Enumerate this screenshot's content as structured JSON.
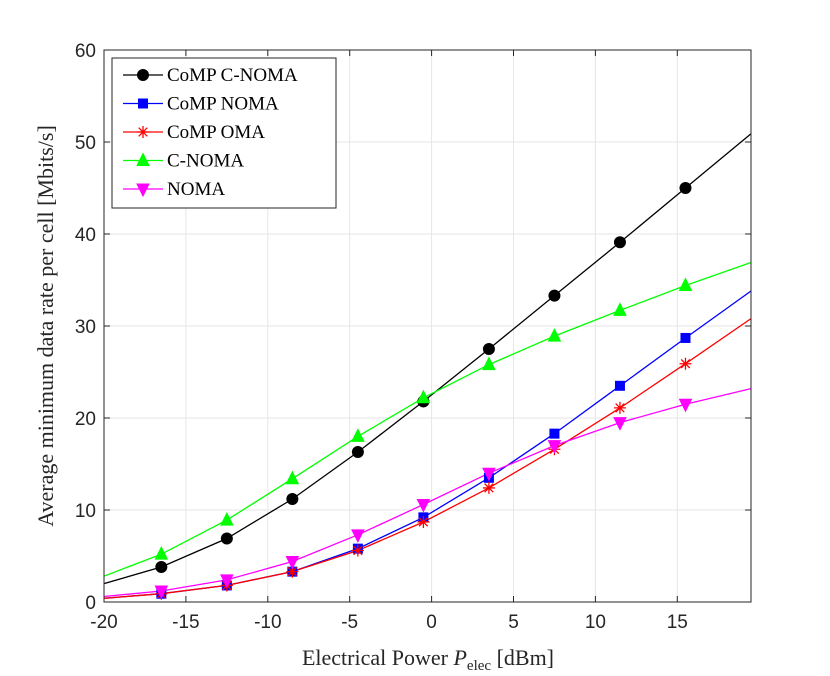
{
  "chart_data": {
    "type": "line",
    "xlabel_main": "Electrical Power ",
    "xlabel_var": "P",
    "xlabel_sub": "elec",
    "xlabel_unit": " [dBm]",
    "ylabel": "Average minimum data rate per cell [Mbits/s]",
    "xlim": [
      -20,
      19.5
    ],
    "ylim": [
      0,
      60
    ],
    "x_ticks": [
      -20,
      -15,
      -10,
      -5,
      0,
      5,
      10,
      15
    ],
    "x_tick_labels": [
      "-20",
      "-15",
      "-10",
      "-5",
      "0",
      "5",
      "10",
      "15"
    ],
    "y_ticks": [
      0,
      10,
      20,
      30,
      40,
      50,
      60
    ],
    "y_tick_labels": [
      "0",
      "10",
      "20",
      "30",
      "40",
      "50",
      "60"
    ],
    "grid": true,
    "legend_position": "top-left",
    "series": [
      {
        "name": "CoMP C-NOMA",
        "color": "#000000",
        "marker": "circle",
        "x": [
          -20,
          -16.5,
          -12.5,
          -8.5,
          -4.5,
          -0.5,
          3.5,
          7.5,
          11.5,
          15.5,
          19.5
        ],
        "y": [
          2.0,
          3.8,
          6.9,
          11.2,
          16.3,
          21.8,
          27.5,
          33.3,
          39.1,
          45.0,
          50.9
        ],
        "marker_x": [
          -16.5,
          -12.5,
          -8.5,
          -4.5,
          -0.5,
          3.5,
          7.5,
          11.5,
          15.5
        ],
        "marker_y": [
          3.8,
          6.9,
          11.2,
          16.3,
          21.8,
          27.5,
          33.3,
          39.1,
          45.0
        ]
      },
      {
        "name": "CoMP NOMA",
        "color": "#0000ff",
        "marker": "square",
        "x": [
          -20,
          -16.5,
          -12.5,
          -8.5,
          -4.5,
          -0.5,
          3.5,
          7.5,
          11.5,
          15.5,
          19.5
        ],
        "y": [
          0.4,
          0.9,
          1.8,
          3.3,
          5.8,
          9.2,
          13.5,
          18.3,
          23.5,
          28.7,
          33.8
        ],
        "marker_x": [
          -16.5,
          -12.5,
          -8.5,
          -4.5,
          -0.5,
          3.5,
          7.5,
          11.5,
          15.5
        ],
        "marker_y": [
          0.9,
          1.8,
          3.3,
          5.8,
          9.2,
          13.5,
          18.3,
          23.5,
          28.7
        ]
      },
      {
        "name": "CoMP OMA",
        "color": "#ff0000",
        "marker": "asterisk",
        "x": [
          -20,
          -16.5,
          -12.5,
          -8.5,
          -4.5,
          -0.5,
          3.5,
          7.5,
          11.5,
          15.5,
          19.5
        ],
        "y": [
          0.4,
          0.9,
          1.8,
          3.3,
          5.6,
          8.7,
          12.4,
          16.6,
          21.1,
          25.9,
          30.8
        ],
        "marker_x": [
          -16.5,
          -12.5,
          -8.5,
          -4.5,
          -0.5,
          3.5,
          7.5,
          11.5,
          15.5
        ],
        "marker_y": [
          0.9,
          1.8,
          3.3,
          5.6,
          8.7,
          12.4,
          16.6,
          21.1,
          25.9
        ]
      },
      {
        "name": "C-NOMA",
        "color": "#00ff00",
        "marker": "triangle-up",
        "x": [
          -20,
          -16.5,
          -12.5,
          -8.5,
          -4.5,
          -0.5,
          3.5,
          7.5,
          11.5,
          15.5,
          19.5
        ],
        "y": [
          2.8,
          5.2,
          8.9,
          13.4,
          18.0,
          22.2,
          25.8,
          28.9,
          31.7,
          34.4,
          36.9
        ],
        "marker_x": [
          -16.5,
          -12.5,
          -8.5,
          -4.5,
          -0.5,
          3.5,
          7.5,
          11.5,
          15.5
        ],
        "marker_y": [
          5.2,
          8.9,
          13.4,
          18.0,
          22.2,
          25.8,
          28.9,
          31.7,
          34.4
        ]
      },
      {
        "name": "NOMA",
        "color": "#ff00ff",
        "marker": "triangle-down",
        "x": [
          -20,
          -16.5,
          -12.5,
          -8.5,
          -4.5,
          -0.5,
          3.5,
          7.5,
          11.5,
          15.5,
          19.5
        ],
        "y": [
          0.6,
          1.2,
          2.4,
          4.4,
          7.3,
          10.6,
          14.0,
          17.0,
          19.5,
          21.5,
          23.2
        ],
        "marker_x": [
          -16.5,
          -12.5,
          -8.5,
          -4.5,
          -0.5,
          3.5,
          7.5,
          11.5,
          15.5
        ],
        "marker_y": [
          1.2,
          2.4,
          4.4,
          7.3,
          10.6,
          14.0,
          17.0,
          19.5,
          21.5
        ]
      }
    ]
  }
}
